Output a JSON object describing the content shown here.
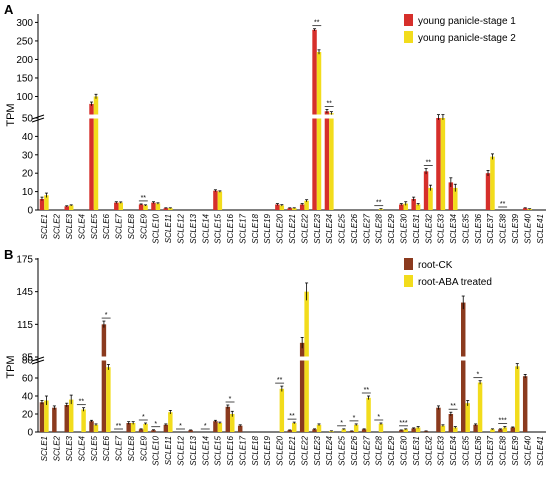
{
  "chart_data": [
    {
      "panel": "A",
      "type": "bar",
      "ylabel": "TPM",
      "axis_break": {
        "lower_max": 50,
        "lower_ticks": [
          0,
          10,
          20,
          30,
          40,
          50
        ],
        "upper_ticks": [
          50,
          100,
          150,
          200,
          250,
          300
        ],
        "upper_max": 320
      },
      "legend_position": "top-right",
      "categories": [
        "SCLE1",
        "SCLE2",
        "SCLE3",
        "SCLE4",
        "SCLE5",
        "SCLE6",
        "SCLE7",
        "SCLE8",
        "SCLE9",
        "SCLE10",
        "SCLE11",
        "SCLE12",
        "SCLE13",
        "SCLE14",
        "SCLE15",
        "SCLE16",
        "SCLE17",
        "SCLE18",
        "SCLE19",
        "SCLE20",
        "SCLE21",
        "SCLE22",
        "SCLE23",
        "SCLE24",
        "SCLE25",
        "SCLE26",
        "SCLE27",
        "SCLE28",
        "SCLE29",
        "SCLE30",
        "SCLE31",
        "SCLE32",
        "SCLE33",
        "SCLE34",
        "SCLE35",
        "SCLE36",
        "SCLE37",
        "SCLE38",
        "SCLE39",
        "SCLE40",
        "SCLE41"
      ],
      "series": [
        {
          "name": "young panicle-stage 1",
          "color": "#d62f2b",
          "values": [
            6,
            0,
            2,
            0,
            80,
            0,
            4,
            0,
            3,
            4,
            1,
            0,
            0,
            0,
            10.5,
            0,
            0,
            0,
            0,
            3,
            1,
            3,
            280,
            60,
            0,
            0,
            0,
            0,
            0,
            3,
            6,
            21,
            50,
            15,
            0,
            0,
            20,
            0,
            0,
            1,
            0
          ],
          "errors": [
            1,
            0,
            0.3,
            0,
            5,
            0,
            0.5,
            0,
            0.3,
            0.5,
            0.2,
            0,
            0,
            0,
            0.5,
            0,
            0,
            0,
            0,
            0.5,
            0.2,
            0.5,
            3,
            5,
            0,
            0,
            0,
            0,
            0,
            0.5,
            1,
            1.5,
            1,
            2.5,
            0,
            0,
            1.5,
            0,
            0,
            0.2,
            0
          ]
        },
        {
          "name": "young panicle-stage 2",
          "color": "#f2dc1c",
          "values": [
            8,
            0,
            2.5,
            0,
            100,
            0,
            4,
            0,
            2.5,
            3.5,
            1,
            0,
            0,
            0,
            10,
            0,
            0,
            0,
            0,
            2.5,
            1,
            5,
            220,
            55,
            0,
            0,
            0,
            0.5,
            0,
            3.5,
            3,
            12,
            50,
            12,
            0,
            0,
            29,
            0,
            0,
            0.5,
            0
          ],
          "errors": [
            1.2,
            0,
            0.3,
            0,
            6,
            0,
            0.4,
            0,
            0.3,
            0.4,
            0.2,
            0,
            0,
            0,
            0.4,
            0,
            0,
            0,
            0,
            0.4,
            0.2,
            0.6,
            6,
            4,
            0,
            0,
            0,
            0.2,
            0,
            1,
            0.5,
            1.5,
            1,
            2,
            0,
            0,
            1.5,
            0,
            0,
            0.2,
            0
          ]
        }
      ],
      "significance": [
        {
          "category": "SCLE9",
          "label": "**"
        },
        {
          "category": "SCLE23",
          "label": "**"
        },
        {
          "category": "SCLE24",
          "label": "**"
        },
        {
          "category": "SCLE28",
          "label": "**"
        },
        {
          "category": "SCLE32",
          "label": "**"
        },
        {
          "category": "SCLE38",
          "label": "**"
        }
      ]
    },
    {
      "panel": "B",
      "type": "bar",
      "ylabel": "TPM",
      "axis_break": {
        "lower_max": 80,
        "lower_ticks": [
          0,
          20,
          40,
          60,
          80
        ],
        "upper_ticks": [
          85,
          115,
          145,
          175
        ],
        "upper_max": 175
      },
      "legend_position": "top-right",
      "categories": [
        "SCLE1",
        "SCLE2",
        "SCLE3",
        "SCLE4",
        "SCLE5",
        "SCLE6",
        "SCLE7",
        "SCLE8",
        "SCLE9",
        "SCLE10",
        "SCLE11",
        "SCLE12",
        "SCLE13",
        "SCLE14",
        "SCLE15",
        "SCLE16",
        "SCLE17",
        "SCLE18",
        "SCLE19",
        "SCLE20",
        "SCLE21",
        "SCLE22",
        "SCLE23",
        "SCLE24",
        "SCLE25",
        "SCLE26",
        "SCLE27",
        "SCLE28",
        "SCLE29",
        "SCLE30",
        "SCLE31",
        "SCLE32",
        "SCLE33",
        "SCLE34",
        "SCLE35",
        "SCLE36",
        "SCLE37",
        "SCLE38",
        "SCLE39",
        "SCLE40",
        "SCLE41"
      ],
      "series": [
        {
          "name": "root-CK",
          "color": "#8b3a1e",
          "values": [
            33,
            27,
            30,
            0,
            12,
            115,
            0,
            10,
            3,
            2,
            8,
            0,
            2,
            0,
            12,
            28,
            7,
            0,
            0,
            0,
            2,
            98,
            3,
            0,
            0,
            1,
            3,
            0,
            0,
            2,
            4,
            1,
            27,
            20,
            135,
            8,
            0,
            3,
            5,
            62,
            0
          ],
          "errors": [
            2,
            2,
            2,
            0,
            1,
            3,
            0,
            1.5,
            0.5,
            0.5,
            1,
            0,
            0.3,
            0,
            1,
            2,
            1,
            0,
            0,
            0,
            0.3,
            5,
            0.5,
            0,
            0,
            0.2,
            0.5,
            0,
            0,
            0.3,
            0.6,
            0.2,
            2,
            2,
            6,
            1,
            0,
            0.5,
            0.6,
            2,
            0
          ],
          "significance_note": "none"
        },
        {
          "name": "root-ABA treated",
          "color": "#f2dc1c",
          "values": [
            35,
            0,
            36,
            25,
            8,
            72,
            0,
            10,
            9,
            0,
            22,
            0,
            0,
            0,
            10,
            20,
            0,
            0,
            0,
            48,
            10,
            145,
            8,
            1,
            3,
            8,
            38,
            9,
            0,
            3,
            5,
            0,
            7,
            5,
            32,
            55,
            3,
            5,
            73,
            0,
            0
          ],
          "errors": [
            5,
            0,
            5,
            2,
            1,
            3,
            0,
            1.5,
            1,
            0,
            2,
            0,
            0,
            0,
            1,
            3,
            0,
            0,
            0,
            3,
            1,
            8,
            1,
            0.3,
            0.5,
            1,
            2,
            1,
            0,
            0.5,
            1,
            0,
            1,
            1,
            3,
            2,
            0.5,
            1,
            3,
            0,
            0
          ]
        }
      ],
      "significance": [
        {
          "category": "SCLE4",
          "label": "**"
        },
        {
          "category": "SCLE6",
          "label": "*"
        },
        {
          "category": "SCLE7",
          "label": "**"
        },
        {
          "category": "SCLE9",
          "label": "*"
        },
        {
          "category": "SCLE10",
          "label": "*"
        },
        {
          "category": "SCLE12",
          "label": "*"
        },
        {
          "category": "SCLE14",
          "label": "*"
        },
        {
          "category": "SCLE16",
          "label": "*"
        },
        {
          "category": "SCLE20",
          "label": "**"
        },
        {
          "category": "SCLE21",
          "label": "**"
        },
        {
          "category": "SCLE25",
          "label": "*"
        },
        {
          "category": "SCLE26",
          "label": "*"
        },
        {
          "category": "SCLE27",
          "label": "**"
        },
        {
          "category": "SCLE28",
          "label": "*"
        },
        {
          "category": "SCLE30",
          "label": "***"
        },
        {
          "category": "SCLE34",
          "label": "**"
        },
        {
          "category": "SCLE36",
          "label": "*"
        },
        {
          "category": "SCLE38",
          "label": "***"
        }
      ]
    }
  ],
  "panels": {
    "a": {
      "letter": "A"
    },
    "b": {
      "letter": "B"
    }
  },
  "colors": {
    "stage1": "#d62f2b",
    "stage2": "#f2dc1c",
    "rootck": "#8b3a1e",
    "aba": "#f2dc1c",
    "axis": "#000000"
  }
}
